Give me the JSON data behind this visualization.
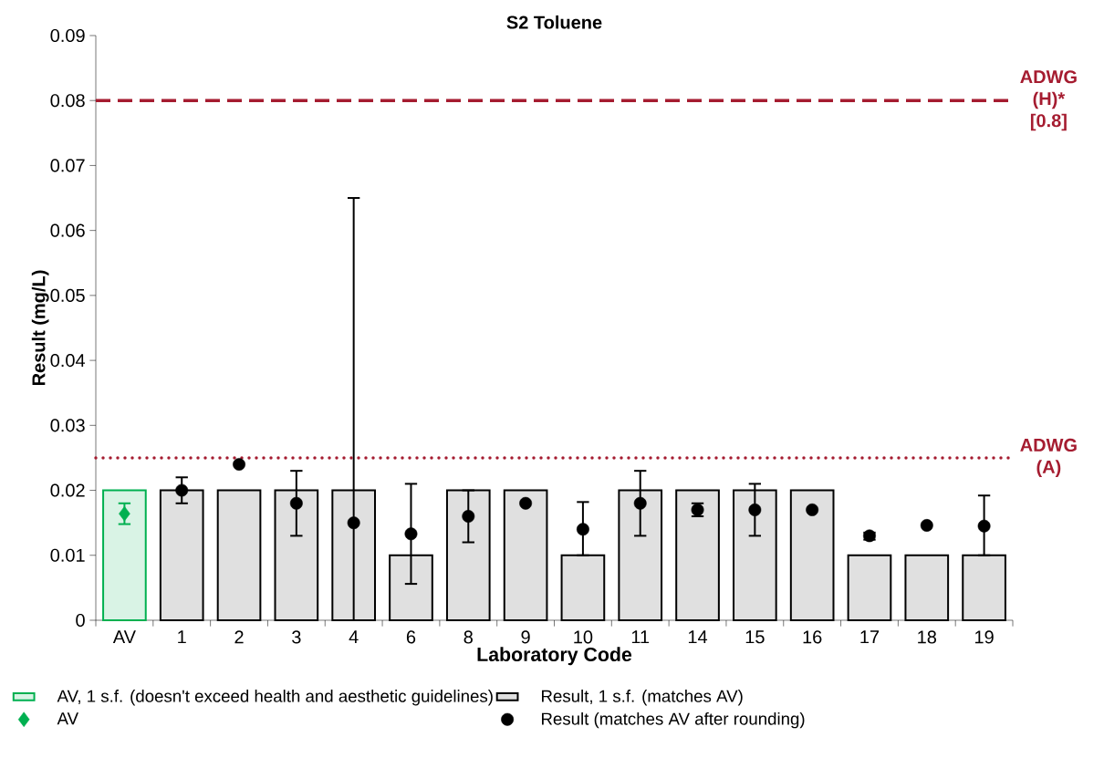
{
  "chart_data": {
    "type": "bar",
    "title": "S2 Toluene",
    "xlabel": "Laboratory Code",
    "ylabel": "Result (mg/L)",
    "categories": [
      "AV",
      "1",
      "2",
      "3",
      "4",
      "6",
      "8",
      "9",
      "10",
      "11",
      "14",
      "15",
      "16",
      "17",
      "18",
      "19"
    ],
    "series": [
      {
        "name": "AV, 1 s.f. (doesn't exceed health and aesthetic guidelines)",
        "color": "#00b050",
        "values": [
          0.02,
          null,
          null,
          null,
          null,
          null,
          null,
          null,
          null,
          null,
          null,
          null,
          null,
          null,
          null,
          null
        ]
      },
      {
        "name": "Result, 1 s.f. (matches AV)",
        "color": "#e0e0e0",
        "values": [
          null,
          0.02,
          0.02,
          0.02,
          0.02,
          0.01,
          0.02,
          0.02,
          0.01,
          0.02,
          0.02,
          0.02,
          0.02,
          0.01,
          0.01,
          0.01
        ]
      },
      {
        "name": "AV",
        "type": "scatter",
        "marker": "diamond",
        "color": "#00b050",
        "values": [
          0.0164,
          null,
          null,
          null,
          null,
          null,
          null,
          null,
          null,
          null,
          null,
          null,
          null,
          null,
          null,
          null
        ],
        "errors": [
          [
            0.0148,
            0.018
          ],
          null,
          null,
          null,
          null,
          null,
          null,
          null,
          null,
          null,
          null,
          null,
          null,
          null,
          null,
          null
        ]
      },
      {
        "name": "Result (matches AV after rounding)",
        "type": "scatter",
        "marker": "circle",
        "color": "#000000",
        "values": [
          null,
          0.02,
          0.024,
          0.018,
          0.015,
          0.0133,
          0.016,
          0.018,
          0.014,
          0.018,
          0.017,
          0.017,
          0.017,
          0.013,
          0.0146,
          0.0145
        ],
        "errors": [
          null,
          [
            0.018,
            0.022
          ],
          null,
          [
            0.013,
            0.023
          ],
          [
            0,
            0.065
          ],
          [
            0.0056,
            0.021
          ],
          [
            0.012,
            0.02
          ],
          null,
          [
            0.01,
            0.0182
          ],
          [
            0.013,
            0.023
          ],
          [
            0.016,
            0.018
          ],
          [
            0.013,
            0.021
          ],
          null,
          [
            0.0124,
            0.0135
          ],
          null,
          [
            0.01,
            0.0192
          ]
        ]
      }
    ],
    "ylim": [
      0,
      0.09
    ],
    "yticks": [
      0,
      0.01,
      0.02,
      0.03,
      0.04,
      0.05,
      0.06,
      0.07,
      0.08,
      0.09
    ],
    "ref_lines": [
      {
        "axis": "y",
        "value": 0.08,
        "label": "ADWG (H)* [0.8]",
        "color": "#a51c30",
        "line_style": "dashed"
      },
      {
        "axis": "y",
        "value": 0.025,
        "label": "ADWG (A)",
        "color": "#a51c30",
        "line_style": "dotted"
      }
    ],
    "legend": "bottom",
    "grid": false
  }
}
